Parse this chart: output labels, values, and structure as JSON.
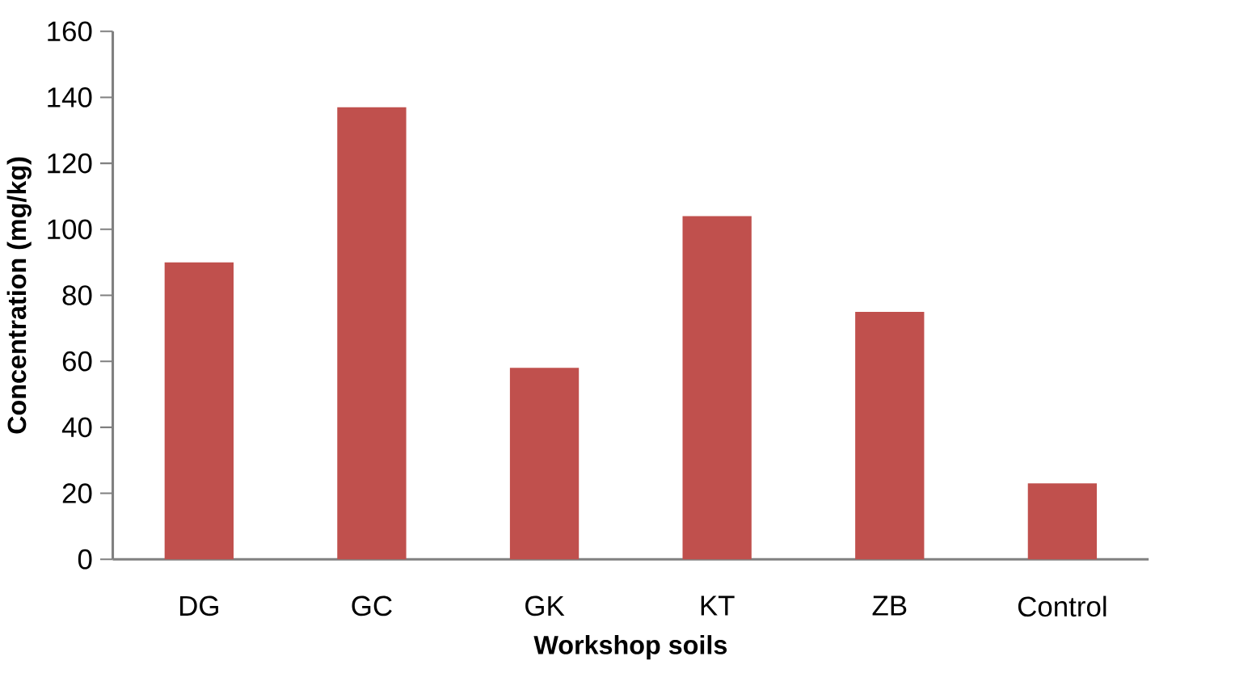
{
  "chart_data": {
    "type": "bar",
    "xlabel": "Workshop soils",
    "ylabel": "Concentration (mg/kg)",
    "categories": [
      "DG",
      "GC",
      "GK",
      "KT",
      "ZB",
      "Control"
    ],
    "values": [
      90,
      137,
      58,
      104,
      75,
      23
    ],
    "color": "#c0504d",
    "ylim": [
      0,
      160
    ],
    "yticks": [
      0,
      20,
      40,
      60,
      80,
      100,
      120,
      140,
      160
    ],
    "grid": false
  }
}
